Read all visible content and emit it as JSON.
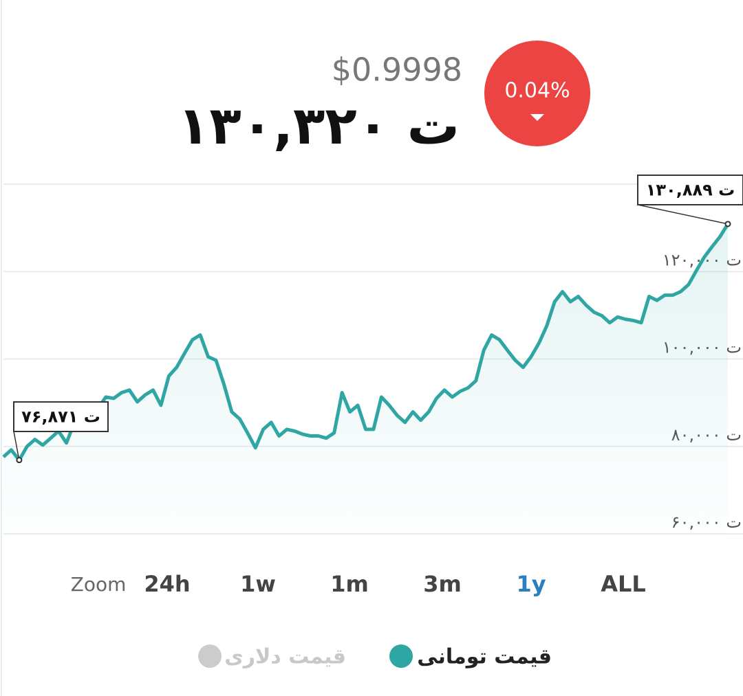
{
  "header": {
    "usd_price": "$0.9998",
    "toman_price": "۱۳۰,۳۲۰ ت",
    "change": "0.04%",
    "change_direction": "down",
    "change_color": "#ec4343"
  },
  "chart_data": {
    "type": "line",
    "series": [
      {
        "name": "قیمت تومانی",
        "color": "#2fa6a3",
        "visible": true,
        "values": [
          77600,
          79200,
          76871,
          80000,
          81600,
          80300,
          81900,
          83500,
          80800,
          85500,
          86300,
          87900,
          88700,
          91300,
          91000,
          92300,
          92900,
          90200,
          91800,
          92900,
          89400,
          96100,
          98100,
          101300,
          104400,
          105500,
          100500,
          99700,
          94200,
          87900,
          86300,
          83100,
          79700,
          83900,
          85500,
          82400,
          83900,
          83500,
          82800,
          82400,
          82400,
          81900,
          83100,
          92300,
          87900,
          89400,
          83900,
          83900,
          91300,
          89400,
          87100,
          85500,
          87900,
          86000,
          87900,
          91000,
          92900,
          91300,
          92600,
          93400,
          95000,
          102000,
          105500,
          104400,
          102000,
          99700,
          98100,
          100500,
          103600,
          107600,
          113100,
          115400,
          113100,
          114300,
          112300,
          110700,
          109900,
          108300,
          109600,
          109100,
          108800,
          108300,
          114300,
          113400,
          114600,
          114600,
          115400,
          117000,
          120200,
          123300,
          125700,
          128000,
          130889
        ]
      },
      {
        "name": "قیمت دلاری",
        "color": "#cccccc",
        "visible": false
      }
    ],
    "ylim": [
      60000,
      140000
    ],
    "yticks": [
      {
        "value": 60000,
        "label": "ت ۶۰,۰۰۰"
      },
      {
        "value": 80000,
        "label": "ت ۸۰,۰۰۰"
      },
      {
        "value": 100000,
        "label": "ت ۱۰۰,۰۰۰"
      },
      {
        "value": 120000,
        "label": "ت ۱۲۰,۰۰۰"
      }
    ],
    "grid": true,
    "annotations": [
      {
        "value": 76871,
        "label": "۷۶,۸۷۱ ت"
      },
      {
        "value": 130889,
        "label": "۱۳۰,۸۸۹ ت"
      }
    ]
  },
  "zoom": {
    "label": "Zoom",
    "options": [
      "24h",
      "1w",
      "1m",
      "3m",
      "1y",
      "ALL"
    ],
    "selected": 4
  }
}
